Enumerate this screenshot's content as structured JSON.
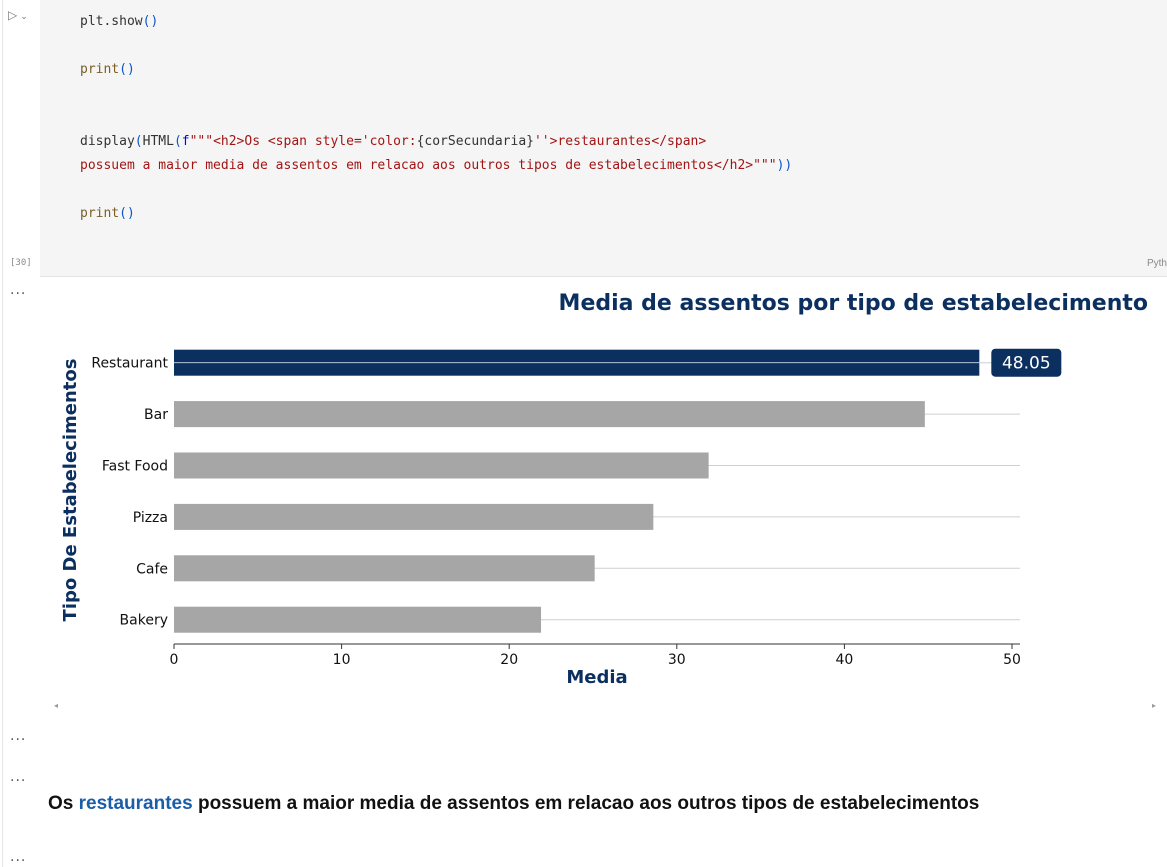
{
  "cell": {
    "run_icon": "play-icon",
    "exec_count": "[30]",
    "language": "Pyth",
    "code": {
      "l1_fn": "plt.show",
      "l1_parens": "()",
      "l2_fn": "print",
      "l2_parens": "()",
      "l3_fn": "display",
      "l3_open": "(",
      "l3_html": "HTML",
      "l3_open2": "(",
      "l3_prefix": "f",
      "l3_str1": "\"\"\"<h2>Os <span style='color:",
      "l3_var": "{corSecundaria}",
      "l3_str2": "''>restaurantes</span>",
      "l4_str": "possuem a maior media de assentos em relacao aos outros tipos de estabelecimentos</h2>\"\"\"",
      "l4_close": "))",
      "l5_fn": "print",
      "l5_parens": "()"
    }
  },
  "output_ellipsis": "...",
  "chart_data": {
    "type": "bar",
    "orientation": "horizontal",
    "title": "Media de assentos por tipo de estabelecimento",
    "xlabel": "Media",
    "ylabel": "Tipo De Estabelecimentos",
    "categories": [
      "Restaurant",
      "Bar",
      "Fast Food",
      "Pizza",
      "Cafe",
      "Bakery"
    ],
    "values": [
      48.05,
      44.8,
      31.9,
      28.6,
      25.1,
      21.9
    ],
    "highlight_index": 0,
    "highlight_label": "48.05",
    "xlim": [
      0,
      50
    ],
    "xticks": [
      0,
      10,
      20,
      30,
      40,
      50
    ],
    "grid": "horizontal",
    "colors": {
      "highlight": "#0b2f5f",
      "default": "#a6a6a6",
      "title": "#0b2f5f",
      "grid": "#cfcfcf"
    }
  },
  "result": {
    "pre": "Os ",
    "highlight": "restaurantes",
    "post": " possuem a maior media de assentos em relacao aos outros tipos de estabelecimentos"
  }
}
